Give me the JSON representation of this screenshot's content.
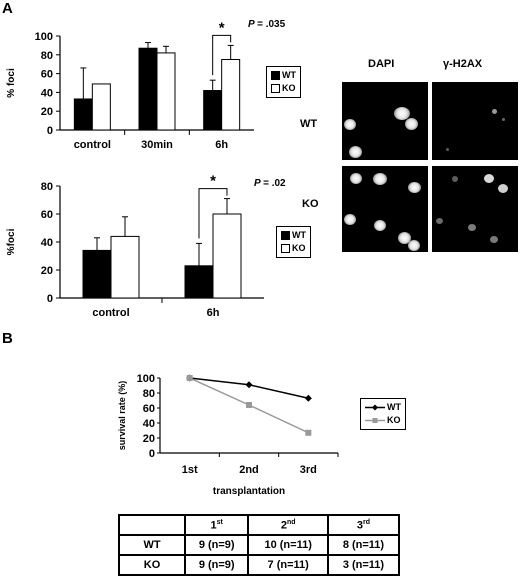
{
  "panel_a_label": "A",
  "panel_b_label": "B",
  "chart_data": [
    {
      "type": "bar",
      "ylabel": "% foci",
      "ylim": [
        0,
        100
      ],
      "yticks": [
        0,
        20,
        40,
        60,
        80,
        100
      ],
      "categories": [
        "control",
        "30min",
        "6h"
      ],
      "series": [
        {
          "name": "WT",
          "values": [
            33,
            87,
            42
          ],
          "errors": [
            33,
            6,
            11
          ]
        },
        {
          "name": "KO",
          "values": [
            49,
            82,
            75
          ],
          "errors": [
            0,
            7,
            15
          ]
        }
      ],
      "significance": {
        "category": "6h",
        "marker": "*",
        "p_text": "P = .035"
      },
      "legend_position": "right"
    },
    {
      "type": "bar",
      "ylabel": "%foci",
      "ylim": [
        0,
        80
      ],
      "yticks": [
        0,
        20,
        40,
        60,
        80
      ],
      "categories": [
        "control",
        "6h"
      ],
      "series": [
        {
          "name": "WT",
          "values": [
            34,
            23
          ],
          "errors": [
            9,
            16
          ]
        },
        {
          "name": "KO",
          "values": [
            44,
            60
          ],
          "errors": [
            14,
            11
          ]
        }
      ],
      "significance": {
        "category": "6h",
        "marker": "*",
        "p_text": "P = .02"
      },
      "legend_position": "right"
    },
    {
      "type": "line",
      "ylabel": "survival rate (%)",
      "xlabel": "transplantation",
      "ylim": [
        0,
        100
      ],
      "yticks": [
        0,
        20,
        40,
        60,
        80,
        100
      ],
      "categories": [
        "1st",
        "2nd",
        "3rd"
      ],
      "series": [
        {
          "name": "WT",
          "values": [
            100,
            91,
            73
          ],
          "color": "#000000",
          "marker": "diamond"
        },
        {
          "name": "KO",
          "values": [
            100,
            64,
            27
          ],
          "color": "#999999",
          "marker": "square"
        }
      ],
      "legend_position": "right"
    },
    {
      "type": "table",
      "columns": [
        "",
        "1st",
        "2nd",
        "3rd"
      ],
      "rows": [
        [
          "WT",
          "9 (n=9)",
          "10 (n=11)",
          "8 (n=11)"
        ],
        [
          "KO",
          "9 (n=9)",
          "7 (n=11)",
          "3 (n=11)"
        ]
      ]
    }
  ],
  "microscopy": {
    "col_labels": [
      "DAPI",
      "γ-H2AX"
    ],
    "row_labels": [
      "WT",
      "KO"
    ]
  },
  "table_header": {
    "c1": {
      "base": "1",
      "sup": "st"
    },
    "c2": {
      "base": "2",
      "sup": "nd"
    },
    "c3": {
      "base": "3",
      "sup": "rd"
    }
  }
}
